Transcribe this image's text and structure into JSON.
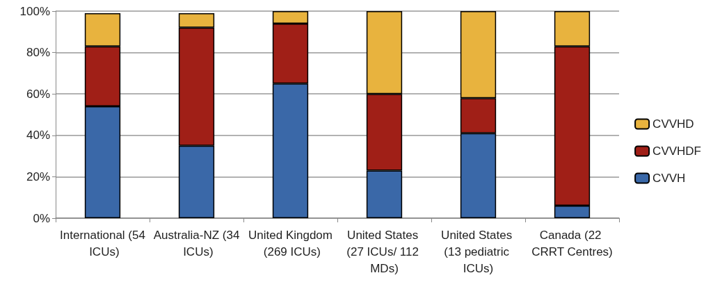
{
  "chart_data": {
    "type": "bar",
    "stacked": true,
    "categories": [
      "International (54 ICUs)",
      "Australia-NZ (34 ICUs)",
      "United Kingdom (269 ICUs)",
      "United States (27 ICUs/ 112 MDs)",
      "United States (13 pediatric ICUs)",
      "Canada (22 CRRT Centres)"
    ],
    "series": [
      {
        "name": "CVVH",
        "color": "#3a68a8",
        "values": [
          54,
          35,
          65,
          23,
          41,
          6
        ]
      },
      {
        "name": "CVVHDF",
        "color": "#a01f17",
        "values": [
          29,
          57,
          29,
          37,
          17,
          77
        ]
      },
      {
        "name": "CVVHD",
        "color": "#e8b33e",
        "values": [
          16,
          7,
          6,
          40,
          42,
          17
        ]
      }
    ],
    "ylim": [
      0,
      100
    ],
    "yticks": [
      {
        "value": 0,
        "label": "0%"
      },
      {
        "value": 20,
        "label": "20%"
      },
      {
        "value": 40,
        "label": "40%"
      },
      {
        "value": 60,
        "label": "60%"
      },
      {
        "value": 80,
        "label": "80%"
      },
      {
        "value": 100,
        "label": "100%"
      }
    ],
    "grid": "y",
    "legend": "right"
  }
}
